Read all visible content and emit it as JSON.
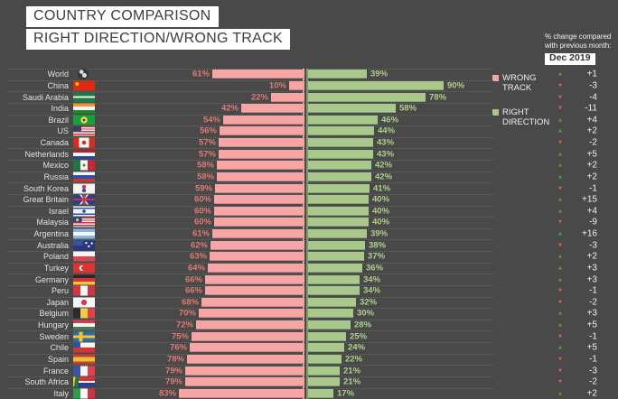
{
  "titles": {
    "line1": "COUNTRY COMPARISON",
    "line2": "RIGHT DIRECTION/WRONG TRACK"
  },
  "change_header": {
    "line1": "% change compared",
    "line2": "with previous month:",
    "month": "Dec 2019"
  },
  "legend": {
    "wrong": "WRONG TRACK",
    "right": "RIGHT DIRECTION"
  },
  "colors": {
    "background": "#494949",
    "wrong_bar": "#f7a5a5",
    "wrong_label": "#e07a72",
    "right_bar": "#a9c98c",
    "right_label": "#aed08f",
    "right_axis": "#7d9c5f",
    "up": "#55a037",
    "down": "#e25c5c",
    "text_light": "#e2e2e2",
    "title_text": "#3d3d3d",
    "dotted": "#666666"
  },
  "chart_data": {
    "type": "bar",
    "orientation": "diverging-horizontal",
    "title": "COUNTRY COMPARISON — RIGHT DIRECTION/WRONG TRACK",
    "note": "% change compared with previous month: Dec 2019",
    "categories": [
      "World",
      "China",
      "Saudi Arabia",
      "India",
      "Brazil",
      "US",
      "Canada",
      "Netherlands",
      "Mexico",
      "Russia",
      "South Korea",
      "Great Britain",
      "Israel",
      "Malaysia",
      "Argentina",
      "Australia",
      "Poland",
      "Turkey",
      "Germany",
      "Peru",
      "Japan",
      "Belgium",
      "Hungary",
      "Sweden",
      "Chile",
      "Spain",
      "France",
      "South Africa",
      "Italy"
    ],
    "series": [
      {
        "name": "WRONG TRACK",
        "values": [
          61,
          10,
          22,
          42,
          54,
          56,
          57,
          57,
          58,
          58,
          59,
          60,
          60,
          60,
          61,
          62,
          63,
          64,
          66,
          66,
          68,
          70,
          72,
          75,
          76,
          78,
          79,
          79,
          83
        ]
      },
      {
        "name": "RIGHT DIRECTION",
        "values": [
          39,
          90,
          78,
          58,
          46,
          44,
          43,
          43,
          42,
          42,
          41,
          40,
          40,
          40,
          39,
          38,
          37,
          36,
          34,
          34,
          32,
          30,
          28,
          25,
          24,
          22,
          21,
          21,
          17
        ]
      }
    ],
    "change_vs_previous_month": [
      1,
      -3,
      -4,
      -11,
      4,
      2,
      -2,
      5,
      2,
      2,
      -1,
      15,
      4,
      -9,
      16,
      -3,
      2,
      3,
      3,
      -1,
      -2,
      3,
      5,
      -1,
      5,
      -1,
      -3,
      -2,
      2
    ],
    "value_unit": "%",
    "xlim": [
      0,
      100
    ],
    "legend_position": "right",
    "grid": "dotted-row-separators",
    "flags": [
      {
        "round": true,
        "bg": "radial-gradient(circle at 35% 30%, #dddddd 0 2px, transparent 2.6px), radial-gradient(circle at 62% 62%, #dddddd 0 2.2px, transparent 2.8px), #353535"
      },
      {
        "bg": "radial-gradient(circle at 18% 32%, #ffde00 0 1.6px, transparent 2.1px), #dd2a10"
      },
      {
        "bg": "linear-gradient(180deg, #1c7a43 0 36%, #eef3ea 36% 56%, #1c7a43 56%)"
      },
      {
        "bg": "linear-gradient(180deg, #f59038 0 33%, #f2f2f2 33% 66%, #1a8a2e 66%)"
      },
      {
        "bg": "radial-gradient(circle at 50% 50%, #1a3a8c 0 1.4px, #ffd836 1.4px 3.4px, transparent 3.9px), #18a03c"
      },
      {
        "bg": "linear-gradient(#3c3b6e,#3c3b6e) left top/38% 55% no-repeat, repeating-linear-gradient(180deg, #c43b44 0 1.4px, #f0f0f0 1.4px 2.8px)"
      },
      {
        "bg": "linear-gradient(90deg, #d62d20 0 27%, transparent 27% 73%, #d62d20 73%), radial-gradient(circle at 50% 50%, #d62d20 0 2px, transparent 2.5px), #f5f5f5"
      },
      {
        "bg": "linear-gradient(180deg, #b2212d 0 33%, #f5f5f5 33% 66%, #27488f 66%)"
      },
      {
        "bg": "radial-gradient(circle at 50% 50%, #8a6a30 0 1.3px, transparent 1.8px), linear-gradient(90deg, #1a7a44 0 33%, #f5f5f5 33% 66%, #cf2433 66%)"
      },
      {
        "bg": "linear-gradient(180deg, #f5f5f5 0 34%, #2b55a3 34% 67%, #d63333 67%)"
      },
      {
        "bg": "radial-gradient(circle at 50% 32%, #cd3e4a 0 2px, transparent 2.4px), radial-gradient(circle at 50% 68%, #2b55a3 0 2px, transparent 2.4px), #f5f5f5"
      },
      {
        "bg": "linear-gradient(0deg, transparent 41%, #cf3341 41% 59%, transparent 59%), linear-gradient(90deg, transparent 43%, #cf3341 43% 57%, transparent 57%), linear-gradient(54deg, transparent 47%, #f0f0f0 47% 53%, transparent 53%), linear-gradient(-54deg, transparent 47%, #f0f0f0 47% 53%, transparent 53%), #2b3f8f"
      },
      {
        "bg": "linear-gradient(180deg, transparent 0 12%, #2b55a3 12% 26%, transparent 26% 74%, #2b55a3 74% 88%, transparent 88%), radial-gradient(circle at 50% 50%, #2b55a3 0 1.6px, transparent 2.1px), #f2f2f2"
      },
      {
        "bg": "radial-gradient(circle at 19% 28%, #f2c437 0 1.4px, transparent 1.9px), linear-gradient(#2b3f8f,#2b3f8f) left top/40% 52% no-repeat, repeating-linear-gradient(180deg, #cf3341 0 1.4px, #f2f2f2 1.4px 2.8px)"
      },
      {
        "bg": "linear-gradient(180deg, #86b7e0 0 33%, #f5f5f5 33% 66%, #86b7e0 66%)"
      },
      {
        "bg": "radial-gradient(circle at 72% 58%, #ffffff 0 0.9px, transparent 1.4px), radial-gradient(circle at 86% 28%, #ffffff 0 0.9px, transparent 1.4px), radial-gradient(circle at 60% 24%, #ffffff 0 0.9px, transparent 1.4px), linear-gradient(#3a4f9e,#3a4f9e) left top/45% 52% no-repeat, #27367f"
      },
      {
        "bg": "linear-gradient(180deg, #f5f5f5 0 50%, #d84854 50%)"
      },
      {
        "bg": "radial-gradient(circle at 46% 50%, #d93333 0 1.9px, transparent 2.3px), radial-gradient(circle at 40% 50%, #f5f5f5 0 2.6px, transparent 3.1px), #d93333"
      },
      {
        "bg": "linear-gradient(180deg, #262626 0 33%, #d63333 33% 66%, #f2c437 66%)"
      },
      {
        "bg": "linear-gradient(90deg, #d63340 0 33%, #f5f5f5 33% 66%, #d63340 66%)"
      },
      {
        "bg": "radial-gradient(circle at 50% 50%, #d63348 0 2.8px, transparent 3.3px), #f5f5f5"
      },
      {
        "bg": "linear-gradient(90deg, #2b2b2b 0 33%, #f2cf3d 33% 66%, #e0414d 66%)"
      },
      {
        "bg": "linear-gradient(180deg, #cf3e4e 0 33%, #f5f5f5 33% 66%, #4a7a52 66%)"
      },
      {
        "bg": "linear-gradient(90deg, transparent 0 28%, #f2c437 28% 44%, transparent 44%), linear-gradient(180deg, transparent 0 38%, #f2c437 38% 62%, transparent 62%), #2e6ba8"
      },
      {
        "bg": "linear-gradient(#2b55a3,#2b55a3) left top/34% 50% no-repeat, linear-gradient(180deg, #f5f5f5 0 50%, #d63333 50%)"
      },
      {
        "bg": "linear-gradient(180deg, #c93a33 0 27%, #e8c03a 27% 73%, #c93a33 73%)"
      },
      {
        "bg": "linear-gradient(90deg, #3a55a4 0 33%, #f5f5f5 33% 66%, #e0414d 66%)"
      },
      {
        "bg": "linear-gradient(98deg, #f2c437 0 10%, #1c7a43 10% 26%, transparent 26%), linear-gradient(180deg, #d63333 0 42%, #f5f5f5 42% 58%, #2b3f8f 58%)"
      },
      {
        "bg": "linear-gradient(90deg, #2e9a4c 0 33%, #f5f5f5 33% 66%, #cf3341 66%)"
      }
    ]
  }
}
